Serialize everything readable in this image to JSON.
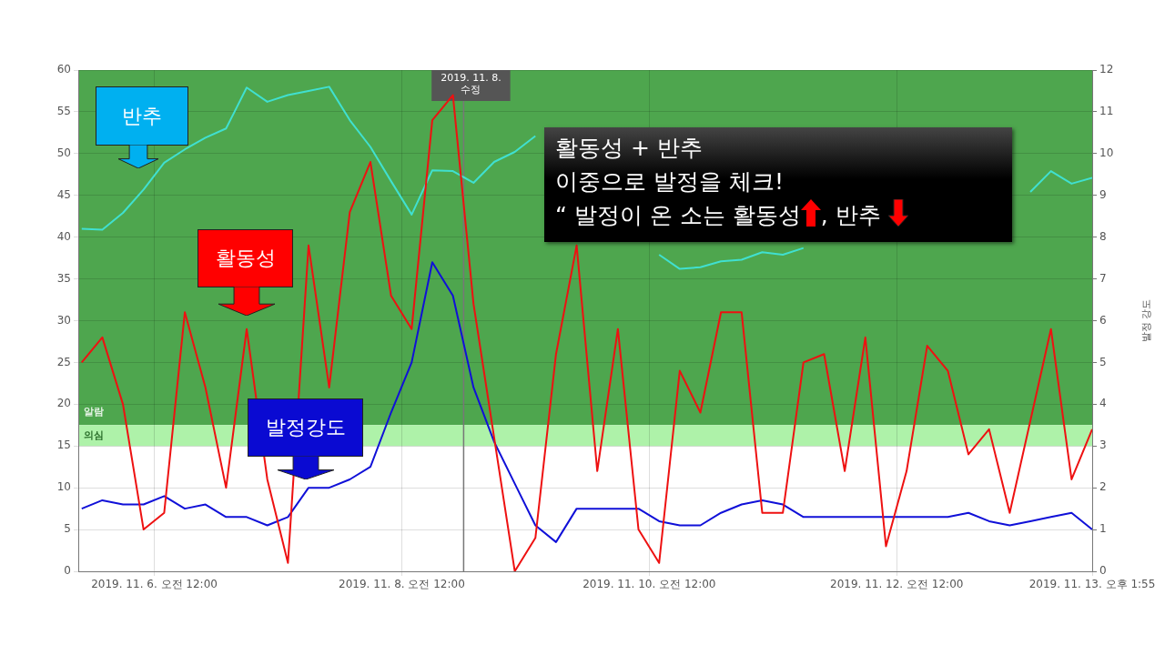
{
  "chart_data": {
    "type": "line",
    "x": [
      "2019-11-05T09:55",
      "2019-11-05T13:55",
      "2019-11-05T17:55",
      "2019-11-05T21:55",
      "2019-11-06T01:55",
      "2019-11-06T05:55",
      "2019-11-06T09:55",
      "2019-11-06T13:55",
      "2019-11-06T17:55",
      "2019-11-06T21:55",
      "2019-11-07T01:55",
      "2019-11-07T05:55",
      "2019-11-07T09:55",
      "2019-11-07T13:55",
      "2019-11-07T17:55",
      "2019-11-07T21:55",
      "2019-11-08T01:55",
      "2019-11-08T05:55",
      "2019-11-08T09:55",
      "2019-11-08T13:55",
      "2019-11-08T17:55",
      "2019-11-08T21:55",
      "2019-11-09T01:55",
      "2019-11-09T05:55",
      "2019-11-09T09:55",
      "2019-11-09T13:55",
      "2019-11-09T17:55",
      "2019-11-09T21:55",
      "2019-11-10T01:55",
      "2019-11-10T05:55",
      "2019-11-10T09:55",
      "2019-11-10T13:55",
      "2019-11-10T17:55",
      "2019-11-10T21:55",
      "2019-11-11T01:55",
      "2019-11-11T05:55",
      "2019-11-11T09:55",
      "2019-11-11T13:55",
      "2019-11-11T17:55",
      "2019-11-11T21:55",
      "2019-11-12T01:55",
      "2019-11-12T05:55",
      "2019-11-12T09:55",
      "2019-11-12T13:55",
      "2019-11-12T17:55",
      "2019-11-12T21:55",
      "2019-11-13T01:55",
      "2019-11-13T05:55",
      "2019-11-13T09:55",
      "2019-11-13T13:55"
    ],
    "xlim": [
      "2019-11-05T09:15",
      "2019-11-13T13:55"
    ],
    "xticks": [
      {
        "value": "2019-11-06T00:00",
        "label": "2019. 11. 6. 오전 12:00"
      },
      {
        "value": "2019-11-08T00:00",
        "label": "2019. 11. 8. 오전 12:00"
      },
      {
        "value": "2019-11-10T00:00",
        "label": "2019. 11. 10. 오전 12:00"
      },
      {
        "value": "2019-11-12T00:00",
        "label": "2019. 11. 12. 오전 12:00"
      },
      {
        "value": "2019-11-13T13:55",
        "label": "2019. 11. 13. 오후 1:55"
      }
    ],
    "ylim": [
      0,
      60
    ],
    "yticks": [
      0,
      5,
      10,
      15,
      20,
      25,
      30,
      35,
      40,
      45,
      50,
      55,
      60
    ],
    "y2lim": [
      0,
      12
    ],
    "y2ticks": [
      0,
      1,
      2,
      3,
      4,
      5,
      6,
      7,
      8,
      9,
      10,
      11,
      12
    ],
    "y2label": "발정 강도",
    "grid": true,
    "marker": "none",
    "line_style": "solid",
    "series": [
      {
        "name": "활동성",
        "color": "#ee1111",
        "values": [
          25,
          28,
          20,
          5,
          7,
          31,
          22,
          10,
          29,
          11,
          1,
          39,
          22,
          43,
          49,
          33,
          29,
          54,
          57,
          32,
          16,
          0,
          4,
          26,
          39,
          12,
          29,
          5,
          1,
          24,
          19,
          31,
          31,
          7,
          7,
          25,
          26,
          12,
          28,
          3,
          12,
          27,
          24,
          14,
          17,
          7,
          18,
          29,
          11,
          17
        ]
      },
      {
        "name": "발정강도",
        "color": "#1010d8",
        "axis": "y2",
        "values": [
          1.5,
          1.7,
          1.6,
          1.6,
          1.8,
          1.5,
          1.6,
          1.3,
          1.3,
          1.1,
          1.3,
          2.0,
          2.0,
          2.2,
          2.5,
          3.8,
          5.0,
          7.4,
          6.6,
          4.4,
          3.1,
          2.1,
          1.1,
          0.7,
          1.5,
          1.5,
          1.5,
          1.5,
          1.2,
          1.1,
          1.1,
          1.4,
          1.6,
          1.7,
          1.6,
          1.3,
          1.3,
          1.3,
          1.3,
          1.3,
          1.3,
          1.3,
          1.3,
          1.4,
          1.2,
          1.1,
          1.2,
          1.3,
          1.4,
          1.0
        ]
      },
      {
        "name": "반추",
        "color": "#40e0d0",
        "values": [
          41,
          40.9,
          42.9,
          45.7,
          48.9,
          50.5,
          51.9,
          53,
          57.9,
          56.2,
          57,
          57.5,
          58,
          54,
          50.8,
          46.7,
          42.7,
          48,
          47.9,
          46.5,
          49,
          50.2,
          52.1,
          null,
          null,
          null,
          null,
          null,
          37.9,
          36.2,
          36.4,
          37.1,
          37.3,
          38.2,
          37.9,
          38.7,
          null,
          null,
          null,
          null,
          null,
          null,
          null,
          null,
          null,
          null,
          45.4,
          47.9,
          46.4,
          47.1
        ]
      }
    ],
    "bands": [
      {
        "axis": "y",
        "from": 17.5,
        "to": 60,
        "label": "알람",
        "color": "#4ea64e"
      },
      {
        "axis": "y",
        "from": 15,
        "to": 17.5,
        "label": "의심",
        "color": "#aef2a9"
      }
    ],
    "ref_lines": [
      {
        "axis": "x",
        "value": "2019-11-08T12:00",
        "label": "2019. 11. 8.\n수정",
        "color": "#777777"
      }
    ],
    "annotations": [
      "활동성 + 반추",
      "이중으로 발정을 체크!",
      "“ 발정이 온 소는 활동성",
      ", 반추"
    ]
  }
}
